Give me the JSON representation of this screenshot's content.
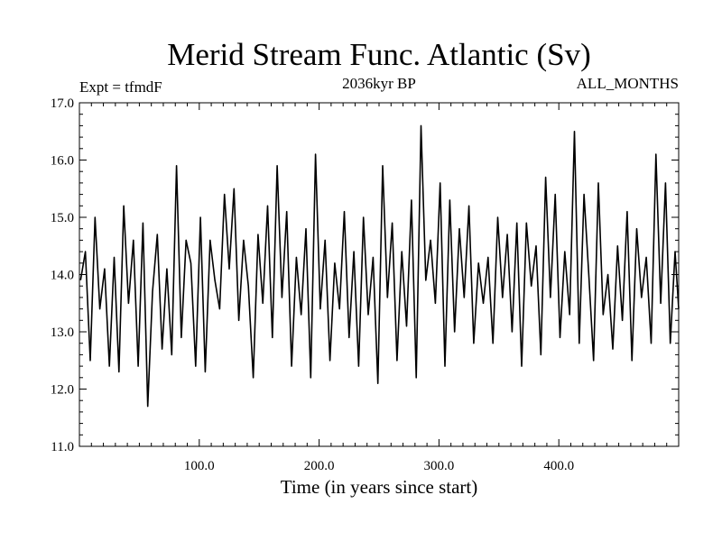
{
  "chart_data": {
    "type": "line",
    "title": "Merid Stream Func. Atlantic (Sv)",
    "left_label": "Expt = tfmdF",
    "center_label": "2036kyr BP",
    "right_label": "ALL_MONTHS",
    "xlabel": "Time (in years since start)",
    "ylabel": "",
    "xlim": [
      0,
      500
    ],
    "ylim": [
      11.0,
      17.0
    ],
    "x_ticks": [
      100,
      200,
      300,
      400
    ],
    "x_tick_labels": [
      "100.0",
      "200.0",
      "300.0",
      "400.0"
    ],
    "y_ticks": [
      11,
      12,
      13,
      14,
      15,
      16,
      17
    ],
    "y_tick_labels": [
      "11.0",
      "12.0",
      "13.0",
      "14.0",
      "15.0",
      "16.0",
      "17.0"
    ],
    "series": [
      {
        "name": "Merid Stream Func. Atlantic",
        "x": [
          1,
          5,
          9,
          13,
          17,
          21,
          25,
          29,
          33,
          37,
          41,
          45,
          49,
          53,
          57,
          61,
          65,
          69,
          73,
          77,
          81,
          85,
          89,
          93,
          97,
          101,
          105,
          109,
          113,
          117,
          121,
          125,
          129,
          133,
          137,
          141,
          145,
          149,
          153,
          157,
          161,
          165,
          169,
          173,
          177,
          181,
          185,
          189,
          193,
          197,
          201,
          205,
          209,
          213,
          217,
          221,
          225,
          229,
          233,
          237,
          241,
          245,
          249,
          253,
          257,
          261,
          265,
          269,
          273,
          277,
          281,
          285,
          289,
          293,
          297,
          301,
          305,
          309,
          313,
          317,
          321,
          325,
          329,
          333,
          337,
          341,
          345,
          349,
          353,
          357,
          361,
          365,
          369,
          373,
          377,
          381,
          385,
          389,
          393,
          397,
          401,
          405,
          409,
          413,
          417,
          421,
          425,
          429,
          433,
          437,
          441,
          445,
          449,
          453,
          457,
          461,
          465,
          469,
          473,
          477,
          481,
          485,
          489,
          493,
          497,
          500
        ],
        "values": [
          13.9,
          14.4,
          12.5,
          15.0,
          13.4,
          14.1,
          12.4,
          14.3,
          12.3,
          15.2,
          13.5,
          14.6,
          12.4,
          14.9,
          11.7,
          13.7,
          14.7,
          12.7,
          14.1,
          12.6,
          15.9,
          12.9,
          14.6,
          14.2,
          12.4,
          15.0,
          12.3,
          14.6,
          13.9,
          13.4,
          15.4,
          14.1,
          15.5,
          13.2,
          14.6,
          13.8,
          12.2,
          14.7,
          13.5,
          15.2,
          12.9,
          15.9,
          13.6,
          15.1,
          12.4,
          14.3,
          13.3,
          14.8,
          12.2,
          16.1,
          13.4,
          14.6,
          12.5,
          14.2,
          13.4,
          15.1,
          12.9,
          14.4,
          12.4,
          15.0,
          13.3,
          14.3,
          12.1,
          15.9,
          13.6,
          14.9,
          12.5,
          14.4,
          13.1,
          15.3,
          12.2,
          16.6,
          13.9,
          14.6,
          13.5,
          15.6,
          12.4,
          15.3,
          13.0,
          14.8,
          13.6,
          15.2,
          12.8,
          14.2,
          13.5,
          14.3,
          12.8,
          15.0,
          13.6,
          14.7,
          13.0,
          14.9,
          12.4,
          14.9,
          13.8,
          14.5,
          12.6,
          15.7,
          13.6,
          15.4,
          12.9,
          14.4,
          13.3,
          16.5,
          12.8,
          15.4,
          14.0,
          12.5,
          15.6,
          13.3,
          14.0,
          12.7,
          14.5,
          13.2,
          15.1,
          12.5,
          14.8,
          13.6,
          14.3,
          12.8,
          16.1,
          13.5,
          15.6,
          12.8,
          14.4,
          13.4
        ]
      }
    ]
  }
}
